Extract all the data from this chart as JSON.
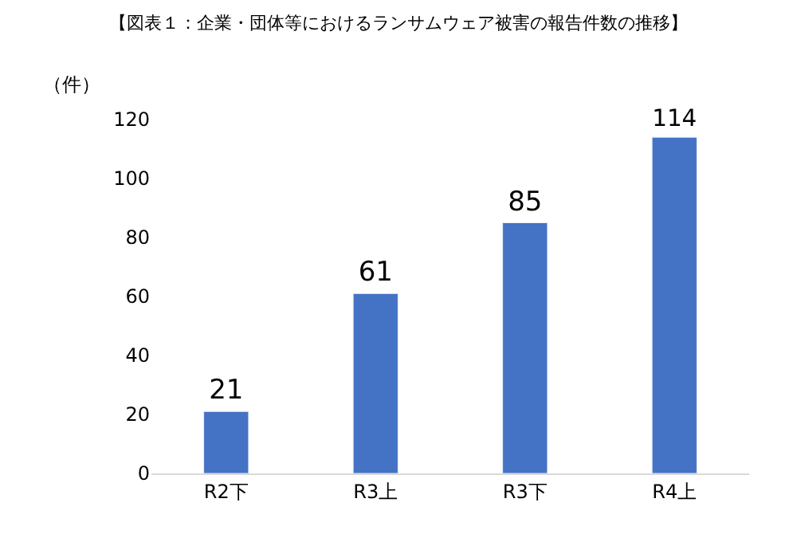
{
  "chart_data": {
    "type": "bar",
    "title": "【図表１：企業・団体等におけるランサムウェア被害の報告件数の推移】",
    "ylabel": "（件）",
    "categories": [
      "R2下",
      "R3上",
      "R3下",
      "R4上"
    ],
    "values": [
      21,
      61,
      85,
      114
    ],
    "color": "#4472c4",
    "ylim": [
      0,
      120
    ],
    "yticks": [
      0,
      20,
      40,
      60,
      80,
      100,
      120
    ],
    "data_labels": true
  }
}
